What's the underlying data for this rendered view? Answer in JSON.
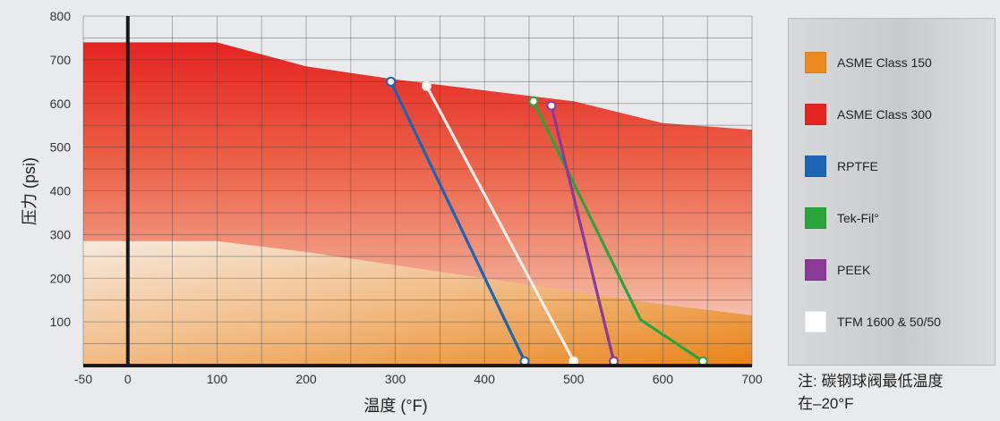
{
  "chart_data": {
    "type": "area",
    "xlabel": "温度 (°F)",
    "ylabel": "压力 (psi)",
    "xlim": [
      -50,
      700
    ],
    "ylim": [
      0,
      800
    ],
    "x_ticks": [
      -50,
      0,
      100,
      200,
      300,
      400,
      500,
      600,
      700
    ],
    "y_ticks": [
      100,
      200,
      300,
      400,
      500,
      600,
      700,
      800
    ],
    "grid": true,
    "legend_position": "right",
    "areas": [
      {
        "name": "ASME Class 300",
        "color": "#e52421",
        "x": [
          -50,
          100,
          200,
          300,
          400,
          500,
          600,
          700
        ],
        "y": [
          740,
          740,
          685,
          655,
          630,
          605,
          555,
          540
        ]
      },
      {
        "name": "ASME Class 150",
        "color": "#ea8a1f",
        "x": [
          -50,
          100,
          200,
          300,
          400,
          500,
          600,
          700
        ],
        "y": [
          285,
          285,
          260,
          230,
          200,
          170,
          140,
          115
        ]
      }
    ],
    "series": [
      {
        "name": "RPTFE",
        "color": "#1c64b4",
        "x": [
          295,
          445
        ],
        "y": [
          650,
          10
        ]
      },
      {
        "name": "TFM 1600 & 50/50",
        "color": "#f2ede8",
        "x": [
          335,
          500
        ],
        "y": [
          640,
          10
        ]
      },
      {
        "name": "Tek-Fil",
        "color": "#2aa53c",
        "x": [
          455,
          575,
          645
        ],
        "y": [
          605,
          105,
          10
        ]
      },
      {
        "name": "PEEK",
        "color": "#8b3a96",
        "x": [
          475,
          545
        ],
        "y": [
          595,
          10
        ]
      }
    ]
  },
  "legend": {
    "items": [
      {
        "label": "ASME Class 150",
        "color": "#ea8a1f"
      },
      {
        "label": "ASME Class 300",
        "color": "#e52421"
      },
      {
        "label": "RPTFE",
        "color": "#1c64b4"
      },
      {
        "label": "Tek-Fil°",
        "color": "#2aa53c"
      },
      {
        "label": "PEEK",
        "color": "#8b3a96"
      },
      {
        "label": "TFM 1600 & 50/50",
        "color": "#ffffff"
      }
    ]
  },
  "note": {
    "line1": "注: 碳钢球阀最低温度",
    "line2": "在–20°F"
  }
}
